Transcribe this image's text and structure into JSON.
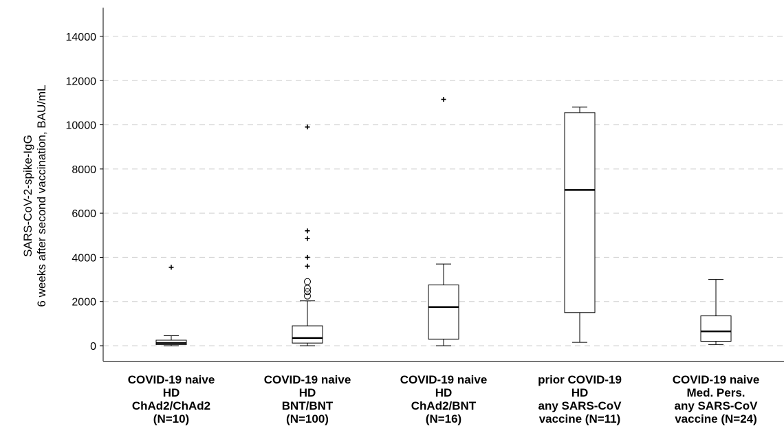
{
  "chart_data": {
    "type": "box",
    "title": "",
    "xlabel": "",
    "ylabel": [
      "SARS-CoV-2-spike-IgG",
      "6 weeks after second vaccination, BAU/mL"
    ],
    "ylim": [
      -700,
      15300
    ],
    "yticks": [
      0,
      2000,
      4000,
      6000,
      8000,
      10000,
      12000,
      14000
    ],
    "ytick_labels": [
      "0",
      "2000",
      "4000",
      "6000",
      "8000",
      "10000",
      "12000",
      "14000"
    ],
    "grid": "horizontal dashed",
    "categories": [
      [
        "COVID-19 naive",
        "HD",
        "ChAd2/ChAd2",
        "(N=10)"
      ],
      [
        "COVID-19 naive",
        "HD",
        "BNT/BNT",
        "(N=100)"
      ],
      [
        "COVID-19 naive",
        "HD",
        "ChAd2/BNT",
        "(N=16)"
      ],
      [
        "prior COVID-19",
        "HD",
        "any SARS-CoV",
        "vaccine (N=11)"
      ],
      [
        "COVID-19 naive",
        "Med. Pers.",
        "any SARS-CoV",
        "vaccine (N=24)"
      ]
    ],
    "boxes": [
      {
        "whisker_low": 0,
        "q1": 50,
        "median": 120,
        "q3": 250,
        "whisker_high": 450,
        "outliers_circle": [],
        "outliers_star": [
          3550
        ]
      },
      {
        "whisker_low": 0,
        "q1": 120,
        "median": 350,
        "q3": 900,
        "whisker_high": 2030,
        "outliers_circle": [
          2250,
          2450,
          2600,
          2900
        ],
        "outliers_star": [
          3600,
          4000,
          4850,
          5200,
          9900
        ]
      },
      {
        "whisker_low": 0,
        "q1": 300,
        "median": 1750,
        "q3": 2750,
        "whisker_high": 3700,
        "outliers_circle": [],
        "outliers_star": [
          11150
        ]
      },
      {
        "whisker_low": 150,
        "q1": 1500,
        "median": 7050,
        "q3": 10550,
        "whisker_high": 10800,
        "outliers_circle": [],
        "outliers_star": []
      },
      {
        "whisker_low": 50,
        "q1": 200,
        "median": 650,
        "q3": 1350,
        "whisker_high": 3000,
        "outliers_circle": [],
        "outliers_star": []
      }
    ]
  }
}
